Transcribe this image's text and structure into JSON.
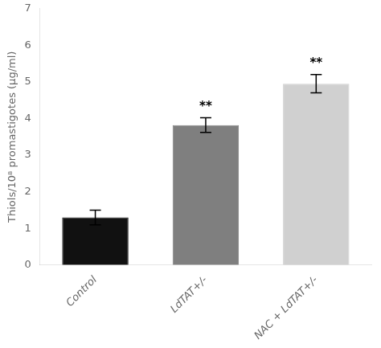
{
  "chart_data": {
    "type": "bar",
    "categories": [
      "Control",
      "LdTAT+/-",
      "NAC + LdTAT+/-"
    ],
    "values": [
      1.3,
      3.82,
      4.95
    ],
    "errors": [
      0.2,
      0.2,
      0.25
    ],
    "significance": [
      null,
      "**",
      "**"
    ],
    "colors": [
      "#111111",
      "#7f7f7f",
      "#d0d0d0"
    ],
    "ylabel": "Thiols/10⁸ promastigotes (μg/ml)",
    "ylim": [
      0,
      7
    ],
    "yticks": [
      0,
      1,
      2,
      3,
      4,
      5,
      6,
      7
    ],
    "grid": false
  }
}
